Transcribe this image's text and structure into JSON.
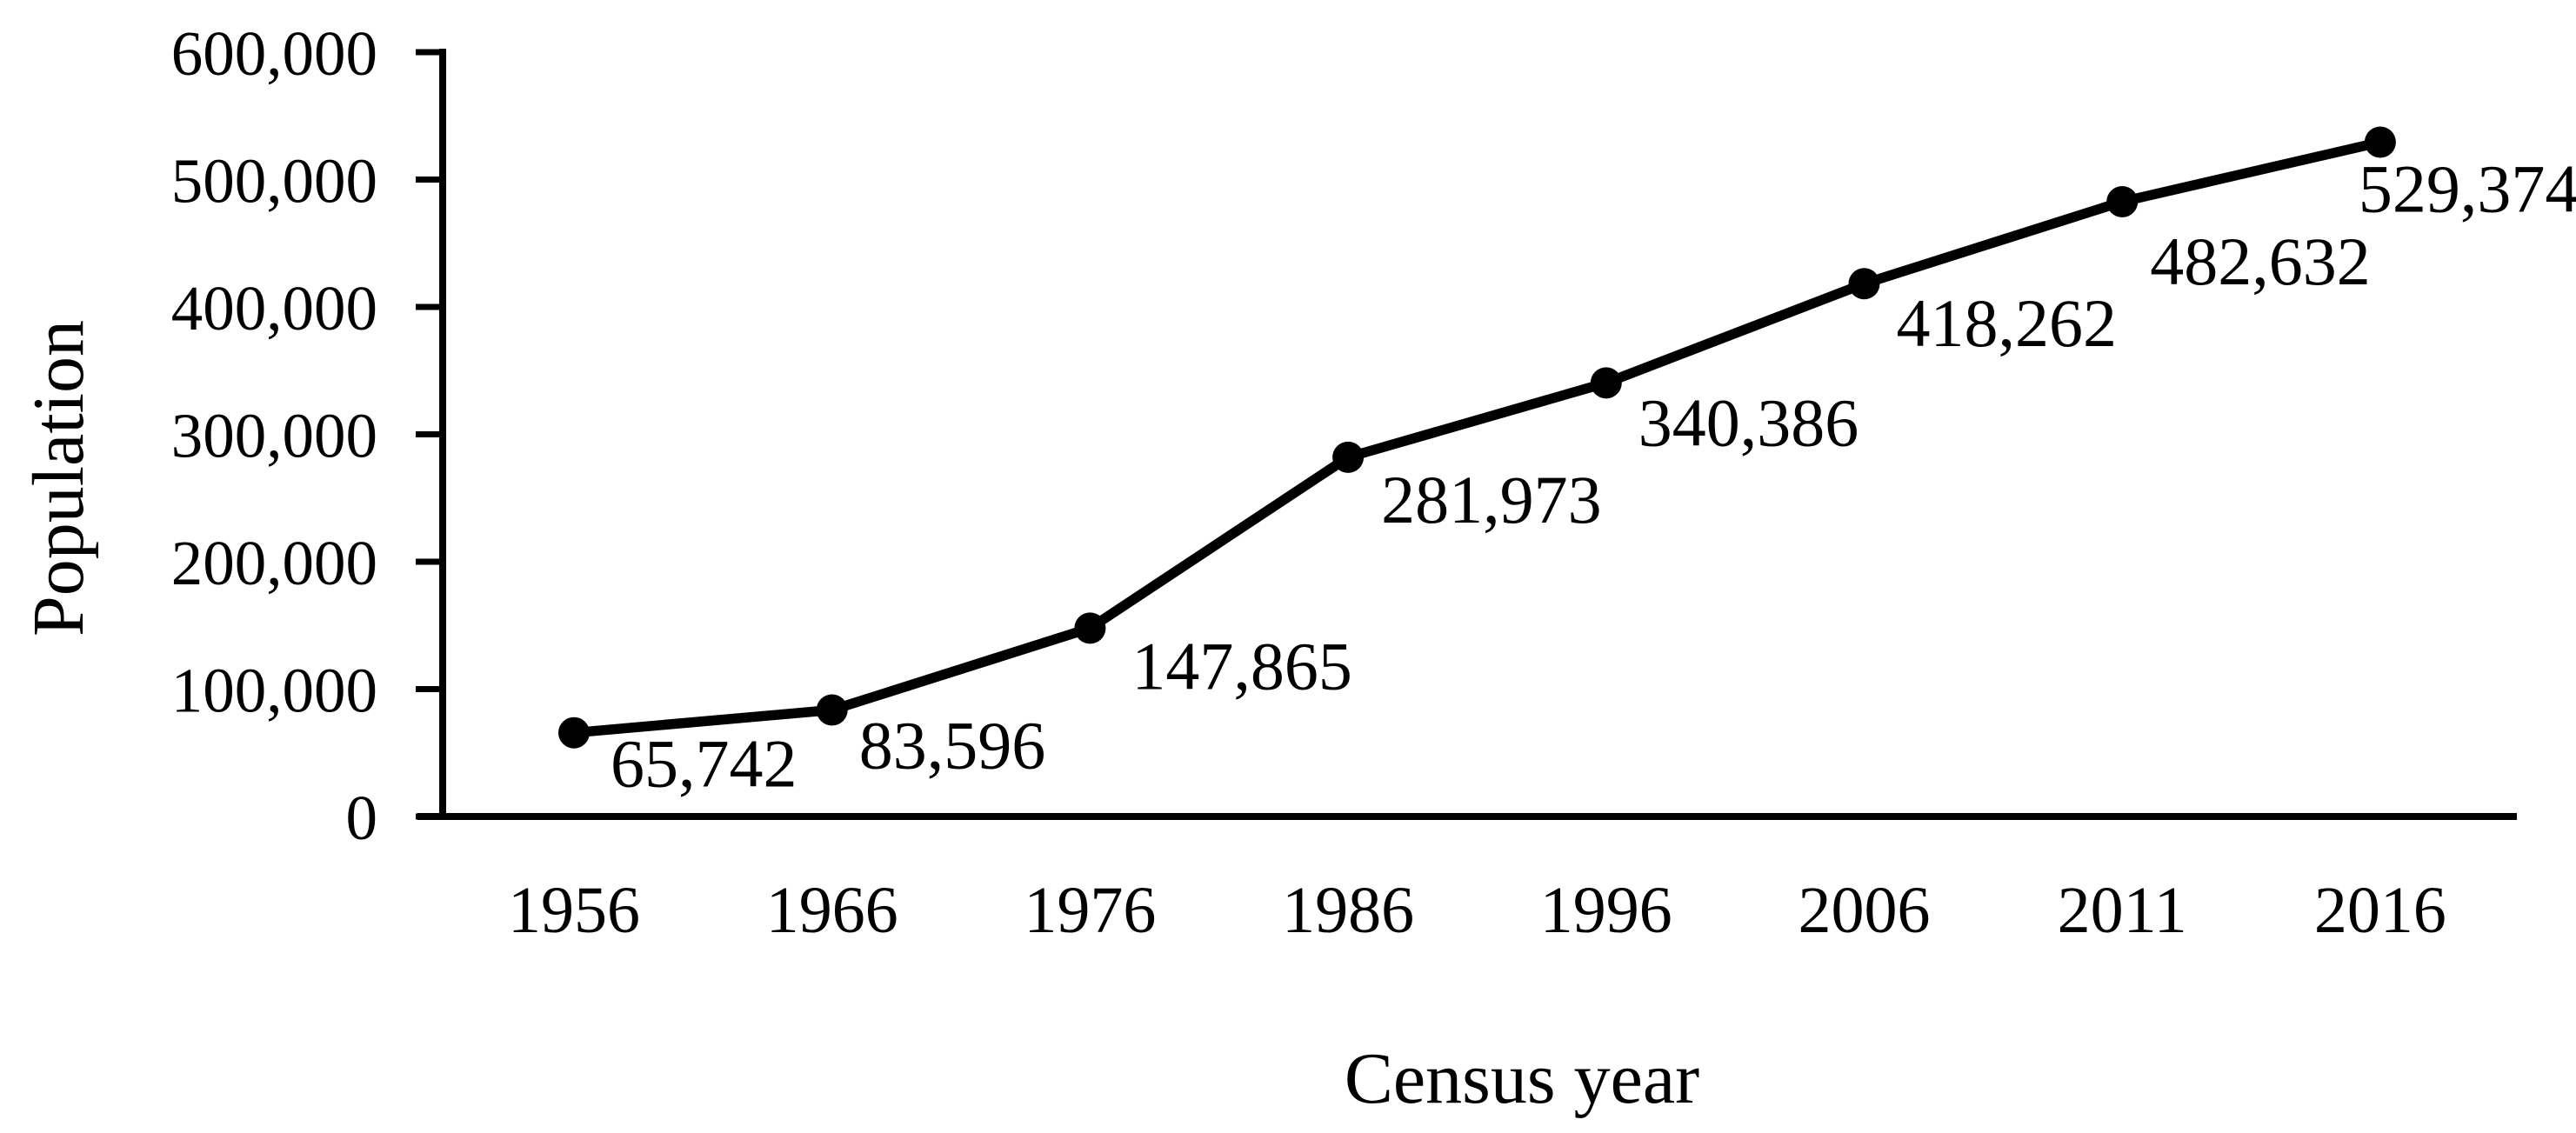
{
  "page": {
    "background_color": "#ffffff",
    "text_color": "#000000"
  },
  "chart_data": {
    "type": "line",
    "title": "",
    "xlabel": "Census year",
    "ylabel": "Population",
    "categories": [
      "1956",
      "1966",
      "1976",
      "1986",
      "1996",
      "2006",
      "2011",
      "2016"
    ],
    "series": [
      {
        "name": "Population",
        "values": [
          65742,
          83596,
          147865,
          281973,
          340386,
          418262,
          482632,
          529374
        ],
        "point_labels": [
          "65,742",
          "83,596",
          "147,865",
          "281,973",
          "340,386",
          "418,262",
          "482,632",
          "529,374"
        ],
        "line_color": "#000000",
        "marker": "filled-circle"
      }
    ],
    "ylim": [
      0,
      600000
    ],
    "y_ticks": {
      "values": [
        0,
        100000,
        200000,
        300000,
        400000,
        500000,
        600000
      ],
      "labels": [
        "0",
        "100,000",
        "200,000",
        "300,000",
        "400,000",
        "500,000",
        "600,000"
      ]
    },
    "grid": false,
    "legend": "none",
    "axis_color": "#000000"
  }
}
